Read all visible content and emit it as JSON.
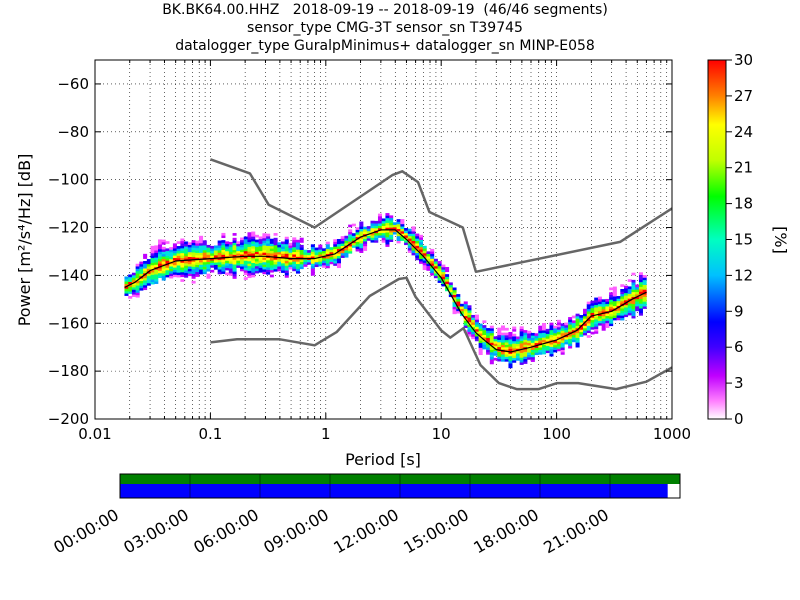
{
  "title_lines": [
    "BK.BK64.00.HHZ   2018-09-19 -- 2018-09-19  (46/46 segments)",
    "sensor_type CMG-3T sensor_sn T39745",
    "datalogger_type GuralpMinimus+ datalogger_sn MINP-E058"
  ],
  "chart_data": {
    "type": "heatmap",
    "xlabel": "Period [s]",
    "ylabel": "Power [m²/s⁴/Hz] [dB]",
    "x_scale": "log",
    "xlim": [
      0.01,
      1000
    ],
    "ylim": [
      -200,
      -50
    ],
    "x_tick_labels": [
      "0.01",
      "0.1",
      "1",
      "10",
      "100",
      "1000"
    ],
    "x_tick_values": [
      0.01,
      0.1,
      1,
      10,
      100,
      1000
    ],
    "y_tick_values": [
      -60,
      -80,
      -100,
      -120,
      -140,
      -160,
      -180,
      -200
    ],
    "y_tick_labels": [
      "−60",
      "−80",
      "−100",
      "−120",
      "−140",
      "−160",
      "−180",
      "−200"
    ],
    "grid": true,
    "colorbar": {
      "label": "[%]",
      "range": [
        0,
        30
      ],
      "tick_values": [
        0,
        3,
        6,
        9,
        12,
        15,
        18,
        21,
        24,
        27,
        30
      ],
      "colormap": "pqlx"
    },
    "series": [
      {
        "role": "high-noise-model",
        "x": [
          0.1,
          0.22,
          0.32,
          0.8,
          3.8,
          4.6,
          6.3,
          7.9,
          15.4,
          20,
          354.8,
          1000
        ],
        "y": [
          -91.5,
          -97.4,
          -110.5,
          -120,
          -98,
          -96.5,
          -101,
          -113.5,
          -120,
          -138.5,
          -126,
          -112
        ]
      },
      {
        "role": "low-noise-model",
        "x": [
          0.1,
          0.17,
          0.4,
          0.8,
          1.24,
          2.4,
          4.3,
          5,
          6,
          10,
          12,
          15.6,
          21.9,
          31.6,
          45,
          70,
          101,
          154,
          328,
          600,
          1000
        ],
        "y": [
          -168,
          -166.7,
          -166.7,
          -169.2,
          -163.7,
          -148.6,
          -141.5,
          -141,
          -149,
          -163,
          -166,
          -162,
          -177.5,
          -185,
          -187.5,
          -187.5,
          -185,
          -185,
          -187.5,
          -184.4,
          -178.5
        ]
      },
      {
        "role": "mode-line",
        "x": [
          0.018,
          0.022,
          0.03,
          0.05,
          0.1,
          0.2,
          0.3,
          0.5,
          0.8,
          1.2,
          2,
          3,
          4,
          5,
          7,
          10,
          15,
          20,
          25,
          30,
          40,
          60,
          100,
          150,
          200,
          300,
          450,
          600
        ],
        "y": [
          -145,
          -143,
          -138,
          -134,
          -133,
          -132,
          -132,
          -133,
          -133,
          -131,
          -124,
          -121,
          -121,
          -125,
          -132,
          -141,
          -156,
          -164,
          -168,
          -171,
          -172,
          -170,
          -167,
          -163,
          -157,
          -155,
          -150,
          -147
        ]
      }
    ],
    "density_bands": [
      {
        "x": [
          0.018,
          0.022,
          0.03,
          0.05,
          0.1,
          0.2,
          0.3,
          0.5,
          0.8,
          1.2,
          2,
          3,
          4,
          5,
          7,
          10,
          15,
          20,
          25,
          30,
          40,
          60,
          100,
          150,
          200,
          300,
          450,
          600
        ],
        "low": [
          -147,
          -145,
          -141,
          -139,
          -138,
          -137,
          -137,
          -137,
          -135,
          -133,
          -126,
          -123,
          -123,
          -127,
          -134,
          -143,
          -158,
          -167,
          -172,
          -175,
          -176,
          -173,
          -170,
          -166,
          -160,
          -158,
          -154,
          -152
        ],
        "high": [
          -142,
          -139,
          -131,
          -128,
          -128,
          -126,
          -126,
          -129,
          -131,
          -128,
          -121,
          -118,
          -118,
          -122,
          -129,
          -138,
          -153,
          -161,
          -164,
          -166,
          -166,
          -165,
          -162,
          -159,
          -152,
          -150,
          -144,
          -141
        ],
        "outer": 5
      }
    ]
  },
  "timeline": {
    "tick_labels": [
      "00:00:00",
      "03:00:00",
      "06:00:00",
      "09:00:00",
      "12:00:00",
      "15:00:00",
      "18:00:00",
      "21:00:00"
    ],
    "data_coverage_fraction": 1.0,
    "psd_coverage_fraction": 0.978,
    "colors": {
      "data": "#008000",
      "psd": "#0000ff"
    }
  }
}
